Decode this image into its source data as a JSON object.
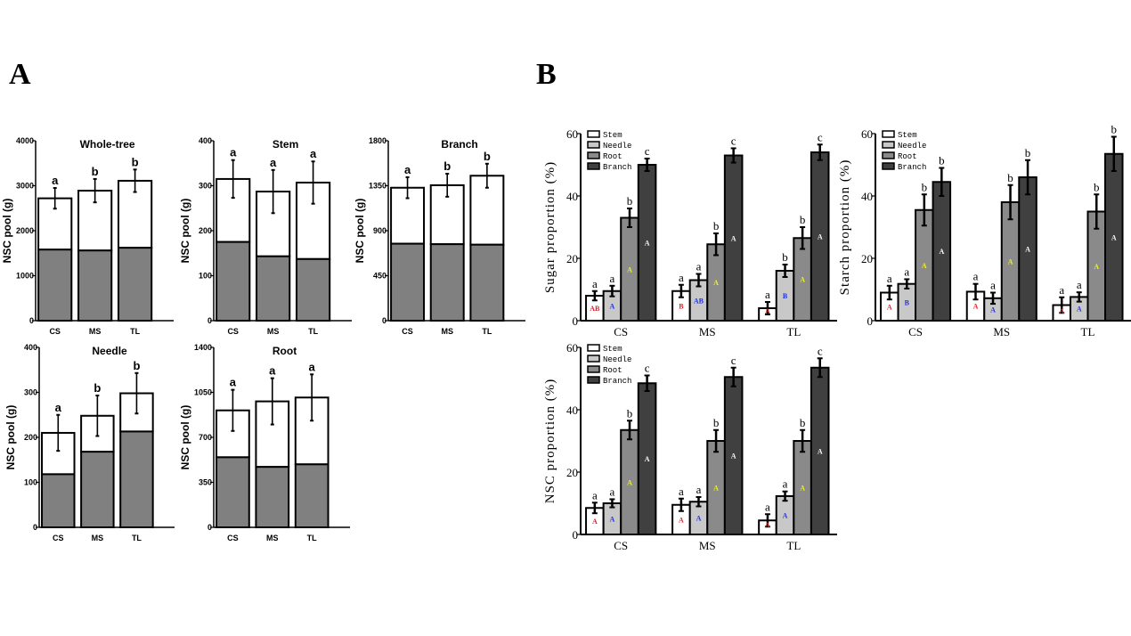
{
  "panel_labels": [
    "A",
    "B"
  ],
  "chart_data": [
    {
      "panel": "A",
      "type": "bar",
      "stacked": true,
      "title": "Whole-tree",
      "ylabel": "NSC pool (g)",
      "ylim": [
        0,
        4000
      ],
      "yticks": [
        0,
        1000,
        2000,
        3000,
        4000
      ],
      "categories": [
        "CS",
        "MS",
        "TL"
      ],
      "series": [
        {
          "name": "lower",
          "color": "#808080",
          "values": [
            1580,
            1560,
            1620
          ]
        },
        {
          "name": "total",
          "color": "#ffffff",
          "values": [
            2720,
            2890,
            3110
          ],
          "error": [
            230,
            260,
            250
          ]
        }
      ],
      "significance": [
        "a",
        "b",
        "b"
      ]
    },
    {
      "panel": "A",
      "type": "bar",
      "stacked": true,
      "title": "Stem",
      "ylabel": "NSC pool (g)",
      "ylim": [
        0,
        400
      ],
      "yticks": [
        0,
        100,
        200,
        300,
        400
      ],
      "categories": [
        "CS",
        "MS",
        "TL"
      ],
      "series": [
        {
          "name": "lower",
          "color": "#808080",
          "values": [
            175,
            143,
            137
          ]
        },
        {
          "name": "total",
          "color": "#ffffff",
          "values": [
            315,
            287,
            307
          ],
          "error": [
            42,
            48,
            47
          ]
        }
      ],
      "significance": [
        "a",
        "a",
        "a"
      ]
    },
    {
      "panel": "A",
      "type": "bar",
      "stacked": true,
      "title": "Branch",
      "ylabel": "NSC pool (g)",
      "ylim": [
        0,
        1800
      ],
      "yticks": [
        0,
        450,
        900,
        1350,
        1800
      ],
      "categories": [
        "CS",
        "MS",
        "TL"
      ],
      "series": [
        {
          "name": "lower",
          "color": "#808080",
          "values": [
            770,
            765,
            760
          ]
        },
        {
          "name": "total",
          "color": "#ffffff",
          "values": [
            1330,
            1355,
            1450
          ],
          "error": [
            105,
            115,
            120
          ]
        }
      ],
      "significance": [
        "a",
        "b",
        "b"
      ]
    },
    {
      "panel": "A",
      "type": "bar",
      "stacked": true,
      "title": "Needle",
      "ylabel": "NSC pool (g)",
      "ylim": [
        0,
        400
      ],
      "yticks": [
        0,
        100,
        200,
        300,
        400
      ],
      "categories": [
        "CS",
        "MS",
        "TL"
      ],
      "series": [
        {
          "name": "lower",
          "color": "#808080",
          "values": [
            118,
            168,
            213
          ]
        },
        {
          "name": "total",
          "color": "#ffffff",
          "values": [
            210,
            248,
            298
          ],
          "error": [
            40,
            45,
            45
          ]
        }
      ],
      "significance": [
        "a",
        "b",
        "b"
      ]
    },
    {
      "panel": "A",
      "type": "bar",
      "stacked": true,
      "title": "Root",
      "ylabel": "NSC pool (g)",
      "ylim": [
        0,
        1400
      ],
      "yticks": [
        0,
        350,
        700,
        1050,
        1400
      ],
      "categories": [
        "CS",
        "MS",
        "TL"
      ],
      "series": [
        {
          "name": "lower",
          "color": "#808080",
          "values": [
            545,
            470,
            490
          ]
        },
        {
          "name": "total",
          "color": "#ffffff",
          "values": [
            910,
            980,
            1010
          ],
          "error": [
            160,
            180,
            180
          ]
        }
      ],
      "significance": [
        "a",
        "a",
        "a"
      ]
    },
    {
      "panel": "B",
      "type": "bar",
      "title": "",
      "ylabel": "Sugar proportion (%)",
      "ylim": [
        0,
        60
      ],
      "yticks": [
        0,
        20,
        40,
        60
      ],
      "categories": [
        "CS",
        "MS",
        "TL"
      ],
      "legend": "top-left",
      "series": [
        {
          "name": "Stem",
          "color": "#ffffff",
          "values": [
            8,
            9.5,
            4
          ],
          "error": [
            1.5,
            2,
            2
          ],
          "significance": [
            "a",
            "a",
            "a"
          ],
          "inner": [
            "AB",
            "B",
            "A"
          ],
          "inner_color": "#e0202a"
        },
        {
          "name": "Needle",
          "color": "#c8c8c8",
          "values": [
            9.5,
            13,
            16
          ],
          "error": [
            1.7,
            2,
            2
          ],
          "significance": [
            "a",
            "a",
            "b"
          ],
          "inner": [
            "A",
            "AB",
            "B"
          ],
          "inner_color": "#2030e0"
        },
        {
          "name": "Root",
          "color": "#8a8a8a",
          "values": [
            33,
            24.5,
            26.5
          ],
          "error": [
            3,
            3.5,
            3.5
          ],
          "significance": [
            "b",
            "b",
            "b"
          ],
          "inner": [
            "A",
            "A",
            "A"
          ],
          "inner_color": "#f0f020"
        },
        {
          "name": "Branch",
          "color": "#404040",
          "values": [
            50,
            53,
            54
          ],
          "error": [
            2,
            2.3,
            2.5
          ],
          "significance": [
            "c",
            "c",
            "c"
          ],
          "inner": [
            "A",
            "A",
            "A"
          ],
          "inner_color": "#ffffff"
        }
      ]
    },
    {
      "panel": "B",
      "type": "bar",
      "title": "",
      "ylabel": "Starch proportion (%)",
      "ylim": [
        0,
        60
      ],
      "yticks": [
        0,
        20,
        40,
        60
      ],
      "categories": [
        "CS",
        "MS",
        "TL"
      ],
      "legend": "top-left",
      "series": [
        {
          "name": "Stem",
          "color": "#ffffff",
          "values": [
            9,
            9.3,
            5
          ],
          "error": [
            2.2,
            2.5,
            2.5
          ],
          "significance": [
            "a",
            "a",
            "a"
          ],
          "inner": [
            "A",
            "A",
            "A"
          ],
          "inner_color": "#e0202a"
        },
        {
          "name": "Needle",
          "color": "#c8c8c8",
          "values": [
            11.8,
            7.2,
            7.6
          ],
          "error": [
            1.5,
            1.8,
            1.5
          ],
          "significance": [
            "a",
            "a",
            "a"
          ],
          "inner": [
            "B",
            "A",
            "A"
          ],
          "inner_color": "#2030e0"
        },
        {
          "name": "Root",
          "color": "#8a8a8a",
          "values": [
            35.5,
            38,
            35
          ],
          "error": [
            5,
            5.5,
            5.5
          ],
          "significance": [
            "b",
            "b",
            "b"
          ],
          "inner": [
            "A",
            "A",
            "A"
          ],
          "inner_color": "#f0f020"
        },
        {
          "name": "Branch",
          "color": "#404040",
          "values": [
            44.5,
            46,
            53.5
          ],
          "error": [
            4.5,
            5.5,
            5.5
          ],
          "significance": [
            "b",
            "b",
            "b"
          ],
          "inner": [
            "A",
            "A",
            "A"
          ],
          "inner_color": "#ffffff"
        }
      ]
    },
    {
      "panel": "B",
      "type": "bar",
      "title": "",
      "ylabel": "NSC proportion (%)",
      "ylim": [
        0,
        60
      ],
      "yticks": [
        0,
        20,
        40,
        60
      ],
      "categories": [
        "CS",
        "MS",
        "TL"
      ],
      "legend": "top-left",
      "series": [
        {
          "name": "Stem",
          "color": "#ffffff",
          "values": [
            8.5,
            9.5,
            4.5
          ],
          "error": [
            1.7,
            2,
            2
          ],
          "significance": [
            "a",
            "a",
            "a"
          ],
          "inner": [
            "A",
            "A",
            "A"
          ],
          "inner_color": "#e0202a"
        },
        {
          "name": "Needle",
          "color": "#c8c8c8",
          "values": [
            10,
            10.5,
            12.3
          ],
          "error": [
            1.3,
            1.5,
            1.5
          ],
          "significance": [
            "a",
            "a",
            "a"
          ],
          "inner": [
            "A",
            "A",
            "A"
          ],
          "inner_color": "#2030e0"
        },
        {
          "name": "Root",
          "color": "#8a8a8a",
          "values": [
            33.5,
            30,
            30
          ],
          "error": [
            3,
            3.5,
            3.5
          ],
          "significance": [
            "b",
            "b",
            "b"
          ],
          "inner": [
            "A",
            "A",
            "A"
          ],
          "inner_color": "#f0f020"
        },
        {
          "name": "Branch",
          "color": "#404040",
          "values": [
            48.5,
            50.5,
            53.5
          ],
          "error": [
            2.5,
            3,
            3
          ],
          "significance": [
            "c",
            "c",
            "c"
          ],
          "inner": [
            "A",
            "A",
            "A"
          ],
          "inner_color": "#ffffff"
        }
      ]
    }
  ]
}
